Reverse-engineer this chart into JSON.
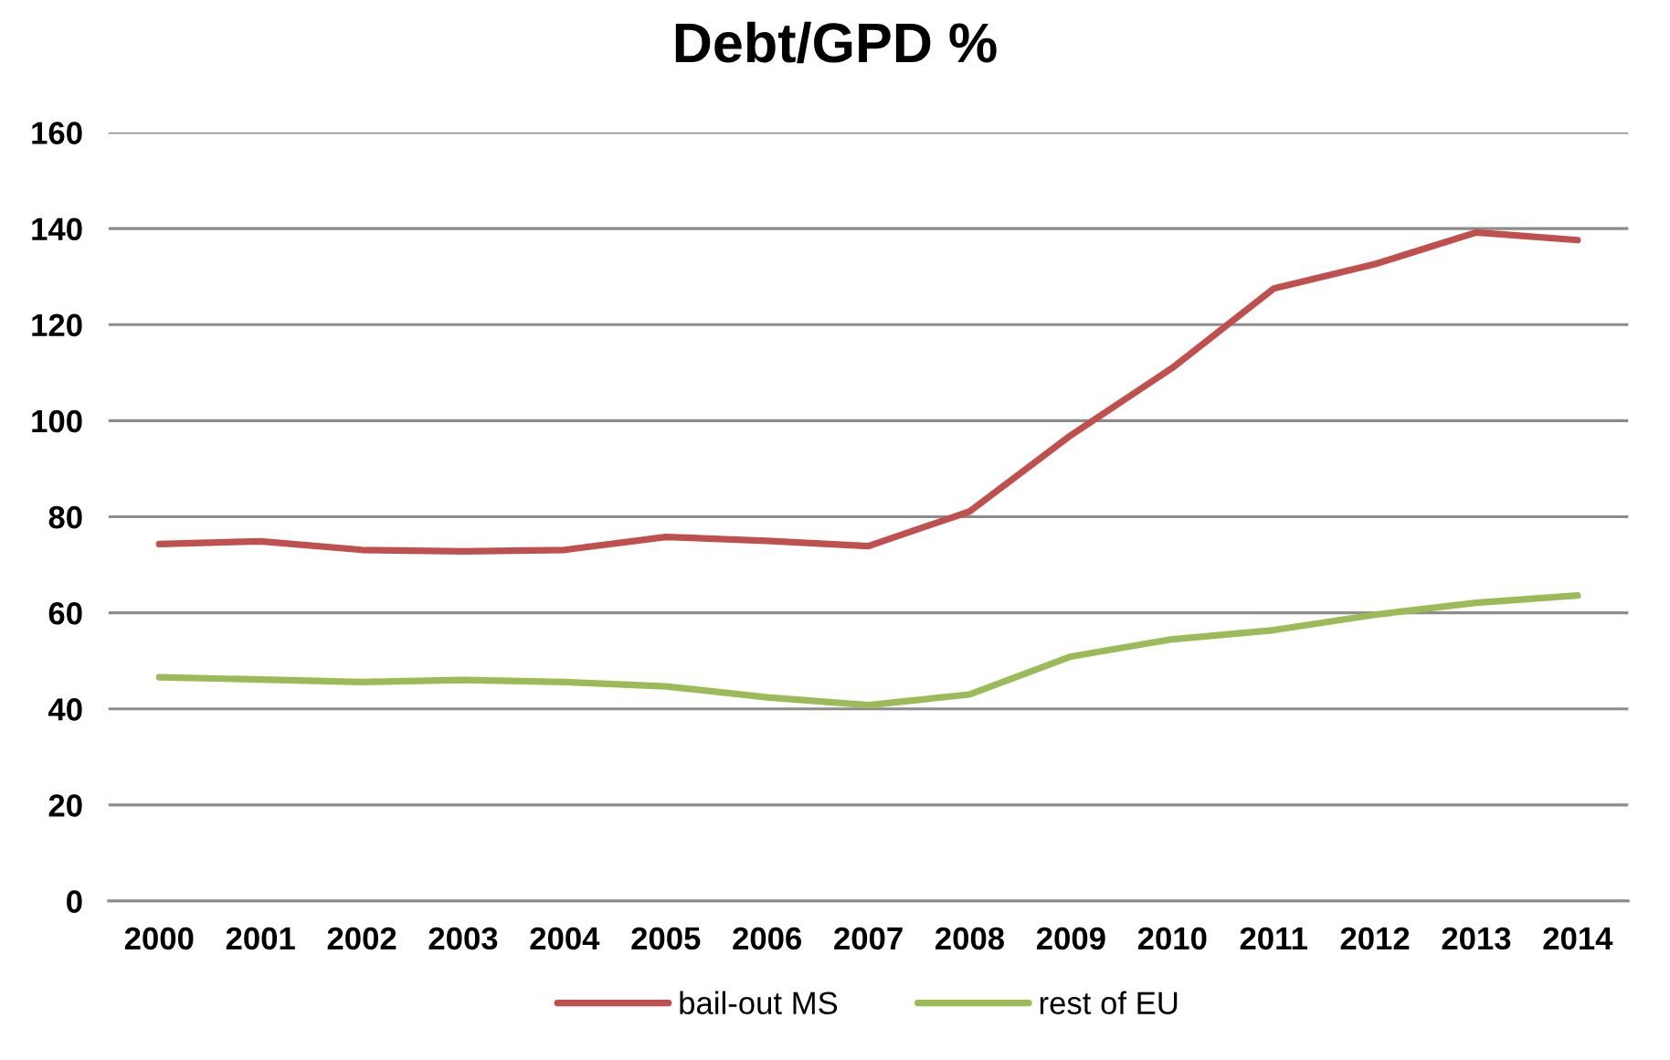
{
  "chart_data": {
    "type": "line",
    "title": "Debt/GPD %",
    "categories": [
      "2000",
      "2001",
      "2002",
      "2003",
      "2004",
      "2005",
      "2006",
      "2007",
      "2008",
      "2009",
      "2010",
      "2011",
      "2012",
      "2013",
      "2014"
    ],
    "series": [
      {
        "name": "bail-out MS",
        "color": "#c0504d",
        "values": [
          74.3,
          74.9,
          73.1,
          72.8,
          73.1,
          75.8,
          75.0,
          73.9,
          81.1,
          97.0,
          111.0,
          127.5,
          132.6,
          139.2,
          137.6
        ]
      },
      {
        "name": "rest of EU",
        "color": "#9bbb59",
        "values": [
          46.6,
          46.1,
          45.6,
          46.0,
          45.6,
          44.7,
          42.4,
          40.8,
          43.0,
          50.9,
          54.5,
          56.4,
          59.6,
          62.1,
          63.6
        ]
      }
    ],
    "ylim": [
      0,
      160
    ],
    "yticks": [
      0,
      20,
      40,
      60,
      80,
      100,
      120,
      140,
      160
    ],
    "grid": "y",
    "legend": "bottom"
  }
}
